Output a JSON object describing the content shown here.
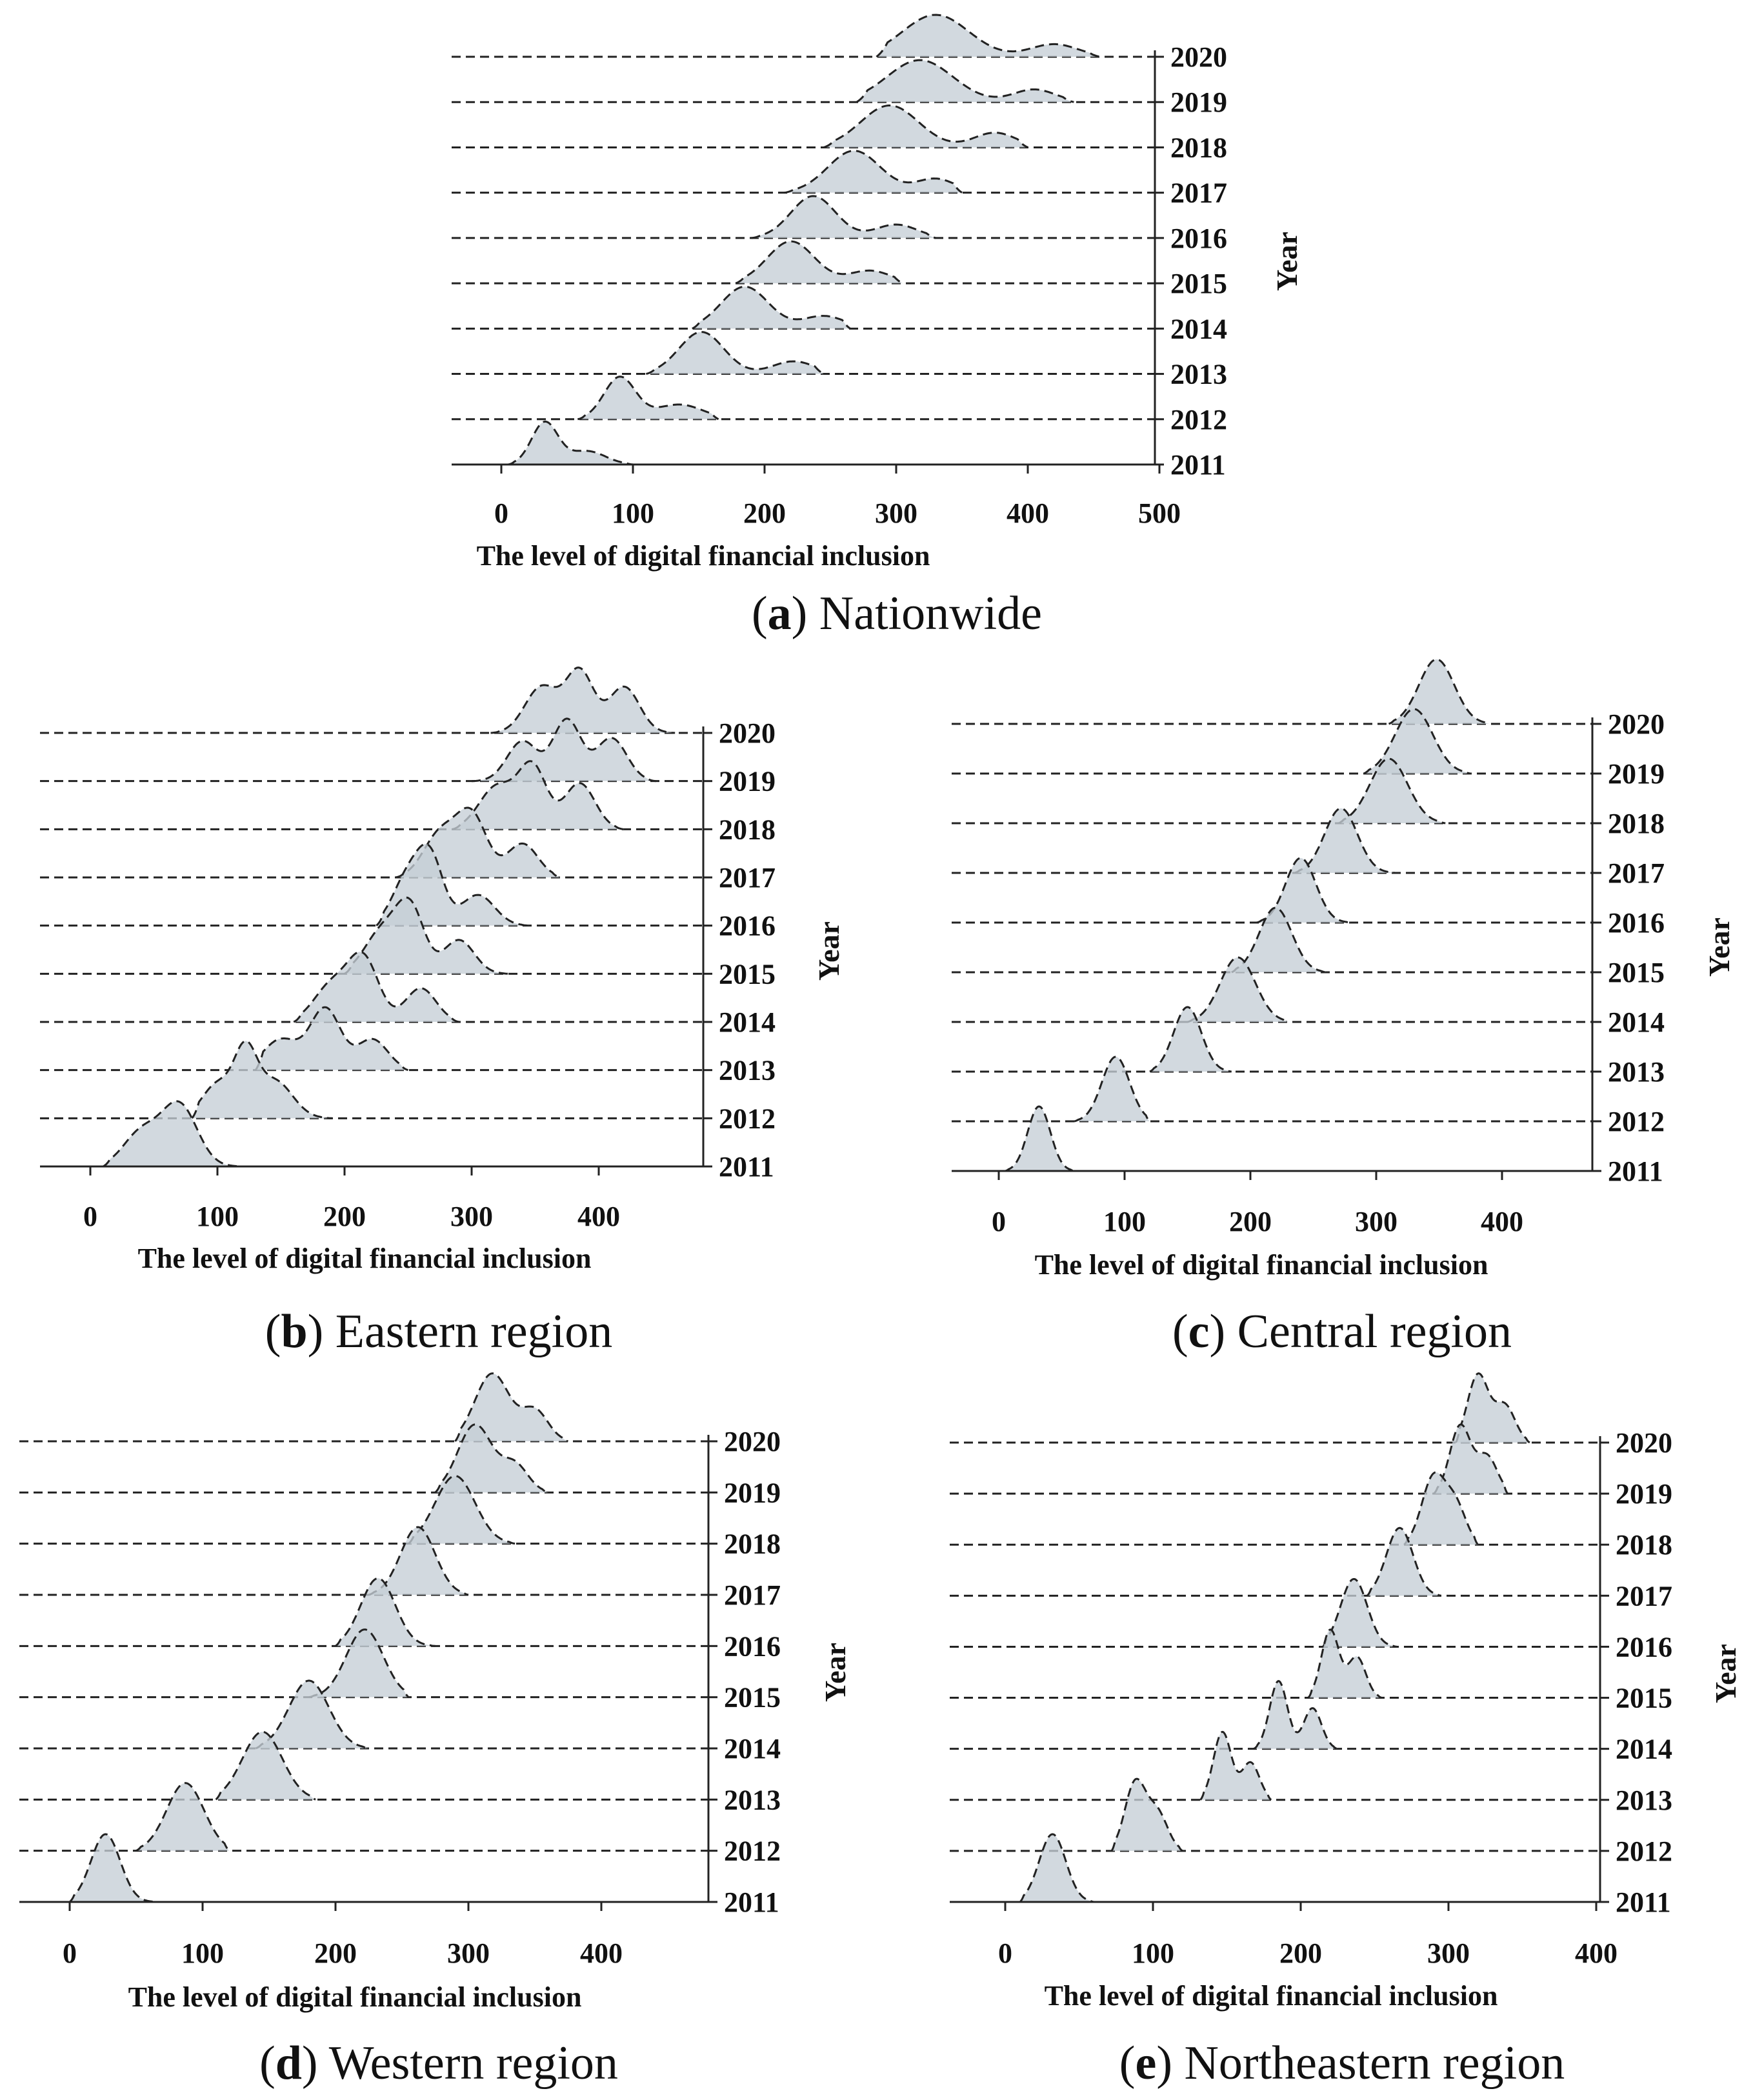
{
  "figure": {
    "axis_title_x": "The level of digital financial inclusion",
    "axis_title_y": "Year"
  },
  "colors": {
    "fill": "#c5ced6",
    "line": "#222222"
  },
  "chart_data": [
    {
      "id": "a",
      "type": "area",
      "subtype": "ridgeline-density",
      "caption_letter": "a",
      "caption_text": " Nationwide",
      "xlabel": "The level of digital financial inclusion",
      "ylabel": "Year",
      "xlim": [
        -40,
        500
      ],
      "xticks": [
        "0",
        "100",
        "200",
        "300",
        "400",
        "500"
      ],
      "categories": [
        "2011",
        "2012",
        "2013",
        "2014",
        "2015",
        "2016",
        "2017",
        "2018",
        "2019",
        "2020"
      ],
      "series": [
        {
          "name": "2011",
          "min": 5,
          "max": 100,
          "peaks": [
            [
              33,
              10,
              1.0
            ],
            [
              65,
              14,
              0.32
            ]
          ]
        },
        {
          "name": "2012",
          "min": 58,
          "max": 165,
          "peaks": [
            [
              90,
              12,
              1.0
            ],
            [
              135,
              18,
              0.35
            ]
          ]
        },
        {
          "name": "2013",
          "min": 110,
          "max": 245,
          "peaks": [
            [
              152,
              17,
              1.0
            ],
            [
              222,
              16,
              0.3
            ]
          ]
        },
        {
          "name": "2014",
          "min": 145,
          "max": 265,
          "peaks": [
            [
              185,
              18,
              1.0
            ],
            [
              245,
              16,
              0.3
            ]
          ]
        },
        {
          "name": "2015",
          "min": 178,
          "max": 305,
          "peaks": [
            [
              220,
              18,
              1.0
            ],
            [
              280,
              16,
              0.3
            ]
          ]
        },
        {
          "name": "2016",
          "min": 190,
          "max": 330,
          "peaks": [
            [
              237,
              17,
              1.0
            ],
            [
              300,
              16,
              0.32
            ]
          ]
        },
        {
          "name": "2017",
          "min": 215,
          "max": 350,
          "peaks": [
            [
              268,
              20,
              1.0
            ],
            [
              330,
              15,
              0.33
            ]
          ]
        },
        {
          "name": "2018",
          "min": 245,
          "max": 400,
          "peaks": [
            [
              295,
              22,
              1.0
            ],
            [
              375,
              16,
              0.35
            ]
          ]
        },
        {
          "name": "2019",
          "min": 270,
          "max": 435,
          "peaks": [
            [
              318,
              25,
              1.0
            ],
            [
              405,
              16,
              0.3
            ]
          ]
        },
        {
          "name": "2020",
          "min": 285,
          "max": 455,
          "peaks": [
            [
              330,
              25,
              1.0
            ],
            [
              420,
              18,
              0.3
            ]
          ]
        }
      ]
    },
    {
      "id": "b",
      "type": "area",
      "subtype": "ridgeline-density",
      "caption_letter": "b",
      "caption_text": " Eastern region",
      "xlabel": "The level of digital financial inclusion",
      "ylabel": "Year",
      "xlim": [
        -35,
        480
      ],
      "xticks": [
        "0",
        "100",
        "200",
        "300",
        "400"
      ],
      "categories": [
        "2011",
        "2012",
        "2013",
        "2014",
        "2015",
        "2016",
        "2017",
        "2018",
        "2019",
        "2020"
      ],
      "series": [
        {
          "name": "2011",
          "min": 10,
          "max": 120,
          "peaks": [
            [
              40,
              14,
              0.55
            ],
            [
              70,
              14,
              1.0
            ]
          ]
        },
        {
          "name": "2012",
          "min": 80,
          "max": 190,
          "peaks": [
            [
              100,
              12,
              0.5
            ],
            [
              122,
              9,
              0.9
            ],
            [
              145,
              14,
              0.55
            ]
          ]
        },
        {
          "name": "2013",
          "min": 130,
          "max": 250,
          "peaks": [
            [
              150,
              14,
              0.5
            ],
            [
              185,
              12,
              1.0
            ],
            [
              222,
              12,
              0.5
            ]
          ]
        },
        {
          "name": "2014",
          "min": 160,
          "max": 290,
          "peaks": [
            [
              190,
              14,
              0.6
            ],
            [
              215,
              12,
              1.0
            ],
            [
              260,
              12,
              0.55
            ]
          ]
        },
        {
          "name": "2015",
          "min": 200,
          "max": 330,
          "peaks": [
            [
              230,
              14,
              0.7
            ],
            [
              252,
              11,
              1.0
            ],
            [
              290,
              12,
              0.55
            ]
          ]
        },
        {
          "name": "2016",
          "min": 225,
          "max": 345,
          "peaks": [
            [
              250,
              12,
              0.8
            ],
            [
              268,
              10,
              1.0
            ],
            [
              305,
              13,
              0.5
            ]
          ]
        },
        {
          "name": "2017",
          "min": 240,
          "max": 370,
          "peaks": [
            [
              275,
              13,
              0.7
            ],
            [
              300,
              12,
              1.0
            ],
            [
              340,
              12,
              0.55
            ]
          ]
        },
        {
          "name": "2018",
          "min": 285,
          "max": 420,
          "peaks": [
            [
              320,
              14,
              0.7
            ],
            [
              348,
              11,
              1.0
            ],
            [
              385,
              12,
              0.75
            ]
          ]
        },
        {
          "name": "2019",
          "min": 300,
          "max": 445,
          "peaks": [
            [
              340,
              12,
              0.65
            ],
            [
              375,
              11,
              1.0
            ],
            [
              410,
              12,
              0.7
            ]
          ]
        },
        {
          "name": "2020",
          "min": 315,
          "max": 460,
          "peaks": [
            [
              355,
              13,
              0.75
            ],
            [
              385,
              11,
              1.0
            ],
            [
              420,
              12,
              0.75
            ]
          ]
        }
      ]
    },
    {
      "id": "c",
      "type": "area",
      "subtype": "ridgeline-density",
      "caption_letter": "c",
      "caption_text": " Central region",
      "xlabel": "The level of digital financial inclusion",
      "ylabel": "Year",
      "xlim": [
        -40,
        480
      ],
      "xticks": [
        "0",
        "100",
        "200",
        "300",
        "400"
      ],
      "categories": [
        "2011",
        "2012",
        "2013",
        "2014",
        "2015",
        "2016",
        "2017",
        "2018",
        "2019",
        "2020"
      ],
      "series": [
        {
          "name": "2011",
          "min": 5,
          "max": 60,
          "peaks": [
            [
              32,
              9,
              1.0
            ]
          ]
        },
        {
          "name": "2012",
          "min": 60,
          "max": 120,
          "peaks": [
            [
              93,
              11,
              1.0
            ]
          ]
        },
        {
          "name": "2013",
          "min": 120,
          "max": 185,
          "peaks": [
            [
              150,
              11,
              1.0
            ]
          ]
        },
        {
          "name": "2014",
          "min": 150,
          "max": 230,
          "peaks": [
            [
              190,
              14,
              1.0
            ]
          ]
        },
        {
          "name": "2015",
          "min": 185,
          "max": 260,
          "peaks": [
            [
              220,
              13,
              1.0
            ]
          ]
        },
        {
          "name": "2016",
          "min": 205,
          "max": 280,
          "peaks": [
            [
              240,
              12,
              1.0
            ]
          ]
        },
        {
          "name": "2017",
          "min": 235,
          "max": 315,
          "peaks": [
            [
              272,
              13,
              1.0
            ]
          ]
        },
        {
          "name": "2018",
          "min": 270,
          "max": 355,
          "peaks": [
            [
              310,
              15,
              1.0
            ]
          ]
        },
        {
          "name": "2019",
          "min": 290,
          "max": 375,
          "peaks": [
            [
              330,
              15,
              1.0
            ]
          ]
        },
        {
          "name": "2020",
          "min": 310,
          "max": 390,
          "peaks": [
            [
              348,
              14,
              1.0
            ]
          ]
        }
      ]
    },
    {
      "id": "d",
      "type": "area",
      "subtype": "ridgeline-density",
      "caption_letter": "d",
      "caption_text": " Western region",
      "xlabel": "The level of digital financial inclusion",
      "ylabel": "Year",
      "xlim": [
        -40,
        480
      ],
      "xticks": [
        "0",
        "100",
        "200",
        "300",
        "400"
      ],
      "categories": [
        "2011",
        "2012",
        "2013",
        "2014",
        "2015",
        "2016",
        "2017",
        "2018",
        "2019",
        "2020"
      ],
      "series": [
        {
          "name": "2011",
          "min": 0,
          "max": 65,
          "peaks": [
            [
              27,
              11,
              1.0
            ]
          ]
        },
        {
          "name": "2012",
          "min": 50,
          "max": 120,
          "peaks": [
            [
              87,
              14,
              1.0
            ]
          ]
        },
        {
          "name": "2013",
          "min": 110,
          "max": 185,
          "peaks": [
            [
              145,
              15,
              1.0
            ]
          ]
        },
        {
          "name": "2014",
          "min": 140,
          "max": 225,
          "peaks": [
            [
              180,
              15,
              1.0
            ]
          ]
        },
        {
          "name": "2015",
          "min": 180,
          "max": 255,
          "peaks": [
            [
              222,
              14,
              1.0
            ]
          ]
        },
        {
          "name": "2016",
          "min": 200,
          "max": 275,
          "peaks": [
            [
              232,
              13,
              1.0
            ]
          ]
        },
        {
          "name": "2017",
          "min": 225,
          "max": 300,
          "peaks": [
            [
              262,
              13,
              1.0
            ]
          ]
        },
        {
          "name": "2018",
          "min": 255,
          "max": 335,
          "peaks": [
            [
              290,
              15,
              1.0
            ]
          ]
        },
        {
          "name": "2019",
          "min": 275,
          "max": 360,
          "peaks": [
            [
              305,
              13,
              1.0
            ],
            [
              335,
              10,
              0.4
            ]
          ]
        },
        {
          "name": "2020",
          "min": 290,
          "max": 375,
          "peaks": [
            [
              318,
              13,
              1.0
            ],
            [
              350,
              10,
              0.45
            ]
          ]
        }
      ]
    },
    {
      "id": "e",
      "type": "area",
      "subtype": "ridgeline-density",
      "caption_letter": "e",
      "caption_text": " Northeastern region",
      "xlabel": "The level of digital financial inclusion",
      "ylabel": "Year",
      "xlim": [
        -40,
        400
      ],
      "xticks": [
        "0",
        "100",
        "200",
        "300",
        "400"
      ],
      "categories": [
        "2011",
        "2012",
        "2013",
        "2014",
        "2015",
        "2016",
        "2017",
        "2018",
        "2019",
        "2020"
      ],
      "series": [
        {
          "name": "2011",
          "min": 10,
          "max": 60,
          "peaks": [
            [
              32,
              9,
              1.0
            ]
          ]
        },
        {
          "name": "2012",
          "min": 72,
          "max": 120,
          "peaks": [
            [
              88,
              7,
              1.0
            ],
            [
              103,
              7,
              0.55
            ]
          ]
        },
        {
          "name": "2013",
          "min": 132,
          "max": 180,
          "peaks": [
            [
              147,
              6,
              1.0
            ],
            [
              166,
              6,
              0.55
            ]
          ]
        },
        {
          "name": "2014",
          "min": 168,
          "max": 225,
          "peaks": [
            [
              185,
              6,
              1.0
            ],
            [
              208,
              6,
              0.6
            ]
          ]
        },
        {
          "name": "2015",
          "min": 205,
          "max": 255,
          "peaks": [
            [
              220,
              6,
              1.0
            ],
            [
              238,
              6,
              0.6
            ]
          ]
        },
        {
          "name": "2016",
          "min": 215,
          "max": 265,
          "peaks": [
            [
              236,
              9,
              1.0
            ]
          ]
        },
        {
          "name": "2017",
          "min": 245,
          "max": 295,
          "peaks": [
            [
              267,
              9,
              1.0
            ]
          ]
        },
        {
          "name": "2018",
          "min": 270,
          "max": 320,
          "peaks": [
            [
              290,
              8,
              1.0
            ],
            [
              305,
              7,
              0.55
            ]
          ]
        },
        {
          "name": "2019",
          "min": 290,
          "max": 340,
          "peaks": [
            [
              308,
              7,
              1.0
            ],
            [
              326,
              7,
              0.55
            ]
          ]
        },
        {
          "name": "2020",
          "min": 305,
          "max": 355,
          "peaks": [
            [
              320,
              7,
              1.0
            ],
            [
              338,
              7,
              0.55
            ]
          ]
        }
      ]
    }
  ]
}
